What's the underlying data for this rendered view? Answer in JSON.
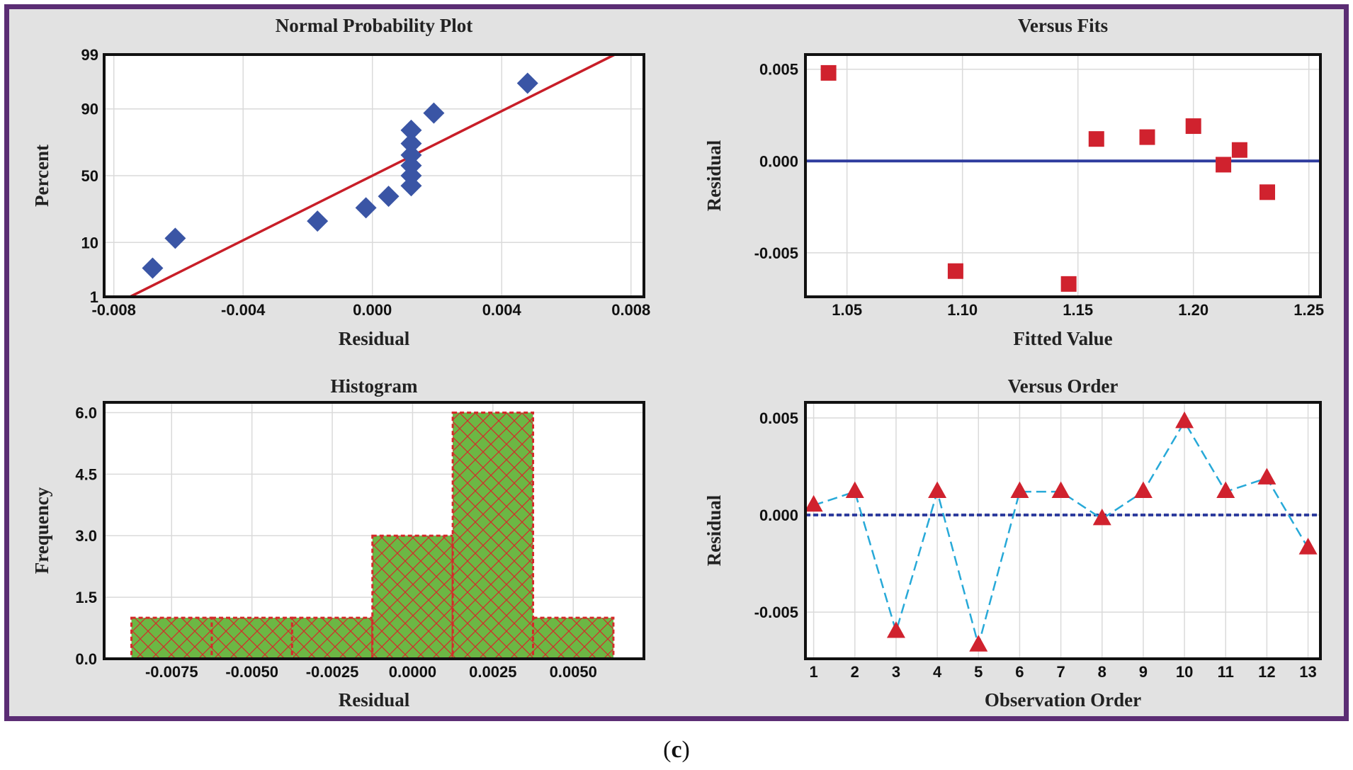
{
  "caption": {
    "open": "(",
    "letter": "c",
    "close": ")"
  },
  "colors": {
    "frame": "#5b2d74",
    "panel_bg": "#e2e2e2",
    "blue_marker": "#3a55a5",
    "red_line": "#c81e28",
    "red_marker": "#d0222e",
    "fit_line": "#2e3c9e",
    "green_bar": "#6cb744",
    "bar_edge": "#d42a2a",
    "order_line": "#27a9d8"
  },
  "chart_data": [
    {
      "type": "scatter",
      "title": "Normal Probability Plot",
      "xlabel": "Residual",
      "ylabel": "Percent",
      "xlim": [
        -0.0083,
        0.0084
      ],
      "xticks": [
        -0.008,
        -0.004,
        0.0,
        0.004,
        0.008
      ],
      "xtick_labels": [
        "-0.008",
        "-0.004",
        "0.000",
        "0.004",
        "0.008"
      ],
      "yticks": [
        1,
        10,
        50,
        90,
        99
      ],
      "ytick_labels": [
        "1",
        "10",
        "50",
        "90",
        "99"
      ],
      "points": [
        {
          "x": -0.0068,
          "y": 3.8
        },
        {
          "x": -0.0061,
          "y": 11.5
        },
        {
          "x": -0.0017,
          "y": 19.2
        },
        {
          "x": -0.0002,
          "y": 26.9
        },
        {
          "x": 0.0005,
          "y": 34.6
        },
        {
          "x": 0.0012,
          "y": 42.3
        },
        {
          "x": 0.0012,
          "y": 50.0
        },
        {
          "x": 0.0012,
          "y": 57.7
        },
        {
          "x": 0.0012,
          "y": 65.4
        },
        {
          "x": 0.0012,
          "y": 73.1
        },
        {
          "x": 0.0012,
          "y": 80.8
        },
        {
          "x": 0.0019,
          "y": 88.5
        },
        {
          "x": 0.0048,
          "y": 96.2
        }
      ],
      "fit_line": [
        {
          "x": -0.0075,
          "y": 1.0
        },
        {
          "x": 0.0075,
          "y": 99.0
        }
      ]
    },
    {
      "type": "scatter",
      "title": "Versus Fits",
      "xlabel": "Fitted Value",
      "ylabel": "Residual",
      "xlim": [
        1.032,
        1.255
      ],
      "ylim": [
        -0.0074,
        0.0058
      ],
      "xticks": [
        1.05,
        1.1,
        1.15,
        1.2,
        1.25
      ],
      "xtick_labels": [
        "1.05",
        "1.10",
        "1.15",
        "1.20",
        "1.25"
      ],
      "yticks": [
        -0.005,
        0.0,
        0.005
      ],
      "ytick_labels": [
        "-0.005",
        "0.000",
        "0.005"
      ],
      "points": [
        {
          "x": 1.042,
          "y": 0.0048
        },
        {
          "x": 1.097,
          "y": -0.006
        },
        {
          "x": 1.146,
          "y": -0.0067
        },
        {
          "x": 1.158,
          "y": 0.0012
        },
        {
          "x": 1.18,
          "y": 0.0013
        },
        {
          "x": 1.2,
          "y": 0.0019
        },
        {
          "x": 1.213,
          "y": -0.0002
        },
        {
          "x": 1.22,
          "y": 0.0006
        },
        {
          "x": 1.232,
          "y": -0.0017
        }
      ],
      "reference_y": 0.0
    },
    {
      "type": "bar",
      "title": "Histogram",
      "xlabel": "Residual",
      "ylabel": "Frequency",
      "ylim": [
        0,
        6.25
      ],
      "xlim": [
        -0.0096,
        0.0072
      ],
      "bin_edges": [
        -0.00875,
        -0.00625,
        -0.00375,
        -0.00125,
        0.00125,
        0.00375,
        0.00625
      ],
      "values": [
        1,
        1,
        1,
        3,
        6,
        1
      ],
      "xticks": [
        -0.0075,
        -0.005,
        -0.0025,
        0.0,
        0.0025,
        0.005
      ],
      "xtick_labels": [
        "-0.0075",
        "-0.0050",
        "-0.0025",
        "0.0000",
        "0.0025",
        "0.0050"
      ],
      "yticks": [
        0.0,
        1.5,
        3.0,
        4.5,
        6.0
      ],
      "ytick_labels": [
        "0.0",
        "1.5",
        "3.0",
        "4.5",
        "6.0"
      ]
    },
    {
      "type": "line",
      "title": "Versus Order",
      "xlabel": "Observation Order",
      "ylabel": "Residual",
      "xlim": [
        0.8,
        13.3
      ],
      "ylim": [
        -0.0074,
        0.0058
      ],
      "x": [
        1,
        2,
        3,
        4,
        5,
        6,
        7,
        8,
        9,
        10,
        11,
        12,
        13
      ],
      "values": [
        0.0005,
        0.0012,
        -0.006,
        0.0012,
        -0.0067,
        0.0012,
        0.0012,
        -0.0002,
        0.0012,
        0.0048,
        0.0012,
        0.0019,
        -0.0017
      ],
      "xtick_labels": [
        "1",
        "2",
        "3",
        "4",
        "5",
        "6",
        "7",
        "8",
        "9",
        "10",
        "11",
        "12",
        "13"
      ],
      "yticks": [
        -0.005,
        0.0,
        0.005
      ],
      "ytick_labels": [
        "-0.005",
        "0.000",
        "0.005"
      ],
      "reference_y": 0.0
    }
  ]
}
